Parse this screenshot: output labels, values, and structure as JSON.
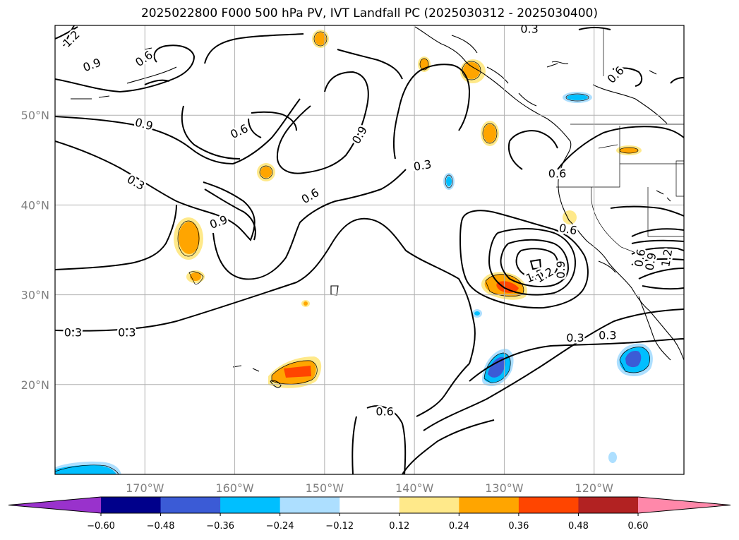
{
  "title": "2025022800 F000 500 hPa PV, IVT Landfall PC (2025030312 - 2025030400)",
  "map": {
    "lon_range": [
      -180,
      -110
    ],
    "lat_range": [
      10,
      60
    ],
    "lon_ticks": [
      {
        "value": -170,
        "label": "170°W"
      },
      {
        "value": -160,
        "label": "160°W"
      },
      {
        "value": -150,
        "label": "150°W"
      },
      {
        "value": -140,
        "label": "140°W"
      },
      {
        "value": -130,
        "label": "130°W"
      },
      {
        "value": -120,
        "label": "120°W"
      }
    ],
    "lat_ticks": [
      {
        "value": 20,
        "label": "20°N"
      },
      {
        "value": 30,
        "label": "30°N"
      },
      {
        "value": 40,
        "label": "40°N"
      },
      {
        "value": 50,
        "label": "50°N"
      }
    ],
    "grid": true,
    "contour_labels": [
      {
        "text": "1.2",
        "lon": -178.2,
        "lat": 58.5,
        "rot": -45
      },
      {
        "text": "0.9",
        "lon": -175.9,
        "lat": 55.6,
        "rot": -20
      },
      {
        "text": "0.6",
        "lon": -170.1,
        "lat": 56.3,
        "rot": -35
      },
      {
        "text": "0.9",
        "lon": -170.1,
        "lat": 49.0,
        "rot": 15
      },
      {
        "text": "0.3",
        "lon": -171.0,
        "lat": 42.5,
        "rot": 30
      },
      {
        "text": "0.9",
        "lon": -161.8,
        "lat": 38.1,
        "rot": -20
      },
      {
        "text": "0.6",
        "lon": -159.5,
        "lat": 48.2,
        "rot": -25
      },
      {
        "text": "0.6",
        "lon": -151.6,
        "lat": 41.0,
        "rot": -30
      },
      {
        "text": "0.9",
        "lon": -146.1,
        "lat": 47.8,
        "rot": -60
      },
      {
        "text": "0.3",
        "lon": -139.1,
        "lat": 44.4,
        "rot": -10
      },
      {
        "text": "0.6",
        "lon": -124.1,
        "lat": 43.5,
        "rot": 0
      },
      {
        "text": "0.6",
        "lon": -117.6,
        "lat": 54.5,
        "rot": -45
      },
      {
        "text": "0.3",
        "lon": -127.2,
        "lat": 59.6,
        "rot": 0
      },
      {
        "text": "0.6",
        "lon": -122.9,
        "lat": 37.3,
        "rot": 10
      },
      {
        "text": "1.5",
        "lon": -126.6,
        "lat": 32.1,
        "rot": -20
      },
      {
        "text": "1.2",
        "lon": -125.5,
        "lat": 32.2,
        "rot": -30
      },
      {
        "text": "0.9",
        "lon": -123.7,
        "lat": 32.8,
        "rot": -90
      },
      {
        "text": "0.6",
        "lon": -114.9,
        "lat": 34.1,
        "rot": -80
      },
      {
        "text": "0.9",
        "lon": -113.7,
        "lat": 33.7,
        "rot": -80
      },
      {
        "text": "1.2",
        "lon": -111.9,
        "lat": 34.1,
        "rot": -80
      },
      {
        "text": "0.3",
        "lon": -122.1,
        "lat": 25.2,
        "rot": 0
      },
      {
        "text": "0.3",
        "lon": -118.5,
        "lat": 25.5,
        "rot": 0
      },
      {
        "text": "0.3",
        "lon": -178.0,
        "lat": 25.8,
        "rot": 0
      },
      {
        "text": "0.3",
        "lon": -172.0,
        "lat": 25.8,
        "rot": 0
      },
      {
        "text": "0.6",
        "lon": -143.3,
        "lat": 17.0,
        "rot": 0
      }
    ]
  },
  "colorbar": {
    "levels": [
      "-0.60",
      "-0.48",
      "-0.36",
      "-0.24",
      "-0.12",
      "0.12",
      "0.24",
      "0.36",
      "0.48",
      "0.60"
    ],
    "colors": [
      "#9932CC",
      "#00008B",
      "#3B5BD6",
      "#00BFFF",
      "#ADDFFF",
      "#FFFFFF",
      "#FFE98A",
      "#FFA500",
      "#FF4500",
      "#B22222",
      "#FF88AA"
    ]
  }
}
